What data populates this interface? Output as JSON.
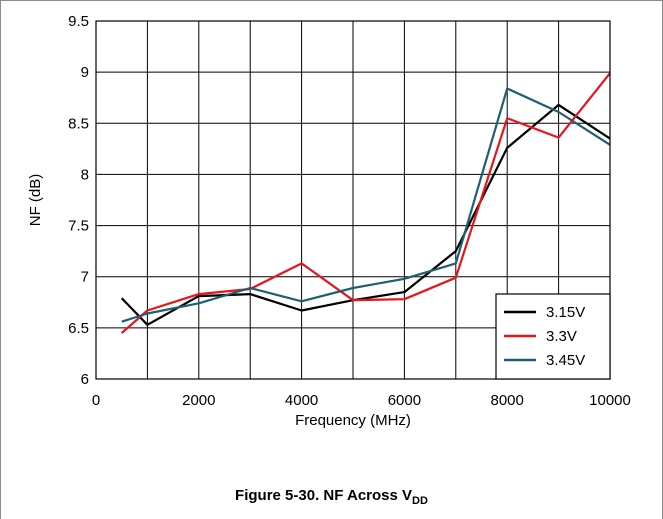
{
  "caption": {
    "text": "Figure 5-30. NF Across V",
    "subscript": "DD"
  },
  "chart_data": {
    "type": "line",
    "title": "",
    "xlabel": "Frequency (MHz)",
    "ylabel": "NF (dB)",
    "xlim": [
      0,
      10000
    ],
    "ylim": [
      6,
      9.5
    ],
    "xticks": [
      0,
      2000,
      4000,
      6000,
      8000,
      10000
    ],
    "xtick_labels": [
      "0",
      "2000",
      "4000",
      "6000",
      "8000",
      "10000"
    ],
    "xgrid": [
      0,
      1000,
      2000,
      3000,
      4000,
      5000,
      6000,
      7000,
      8000,
      9000,
      10000
    ],
    "yticks": [
      6,
      6.5,
      7,
      7.5,
      8,
      8.5,
      9,
      9.5
    ],
    "ytick_labels": [
      "6",
      "6.5",
      "7",
      "7.5",
      "8",
      "8.5",
      "9",
      "9.5"
    ],
    "grid": true,
    "legend_position": "bottom-right",
    "series": [
      {
        "name": "3.15V",
        "color": "#000000",
        "x": [
          500,
          1000,
          2000,
          3000,
          4000,
          5000,
          6000,
          7000,
          8000,
          9000,
          10000
        ],
        "y": [
          6.79,
          6.53,
          6.81,
          6.83,
          6.67,
          6.77,
          6.85,
          7.25,
          8.26,
          8.68,
          8.35
        ]
      },
      {
        "name": "3.3V",
        "color": "#e8141c",
        "x": [
          500,
          1000,
          2000,
          3000,
          4000,
          5000,
          6000,
          7000,
          8000,
          9000,
          10000
        ],
        "y": [
          6.45,
          6.67,
          6.83,
          6.88,
          7.13,
          6.77,
          6.78,
          6.99,
          8.55,
          8.36,
          8.99
        ]
      },
      {
        "name": "3.45V",
        "color": "#1e6070",
        "x": [
          500,
          1000,
          2000,
          3000,
          4000,
          5000,
          6000,
          7000,
          8000,
          9000,
          10000
        ],
        "y": [
          6.56,
          6.64,
          6.74,
          6.89,
          6.76,
          6.89,
          6.98,
          7.13,
          8.84,
          8.61,
          8.29
        ]
      }
    ]
  }
}
